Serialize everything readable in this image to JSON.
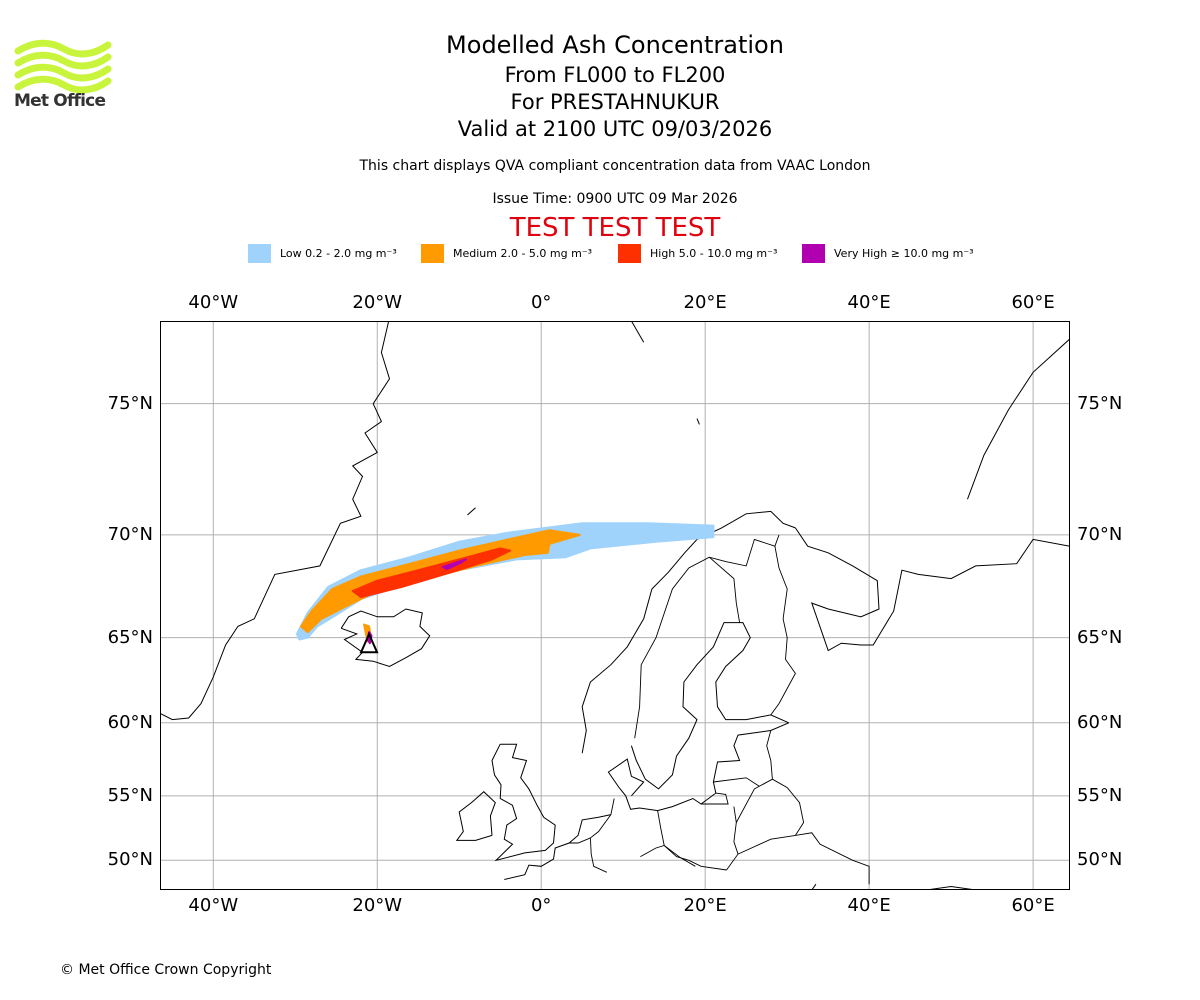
{
  "brand": {
    "name": "Met Office",
    "logo_color": "#c8f53c"
  },
  "titles": {
    "main": "Modelled Ash Concentration",
    "levels": "From FL000 to FL200",
    "volcano": "For PRESTAHNUKUR",
    "valid": "Valid at 2100 UTC 09/03/2026",
    "compliance": "This chart displays QVA compliant concentration data from VAAC London",
    "issue": "Issue Time: 0900 UTC 09 Mar 2026",
    "test_banner": "TEST TEST TEST",
    "test_color": "#e0000e"
  },
  "legend": [
    {
      "key": "low",
      "label": "Low 0.2 - 2.0 mg m⁻³",
      "color": "#9fd3fb"
    },
    {
      "key": "medium",
      "label": "Medium 2.0 - 5.0 mg m⁻³",
      "color": "#ff9a00"
    },
    {
      "key": "high",
      "label": "High 5.0 - 10.0 mg m⁻³",
      "color": "#ff3000"
    },
    {
      "key": "very-high",
      "label": "Very High ≥ 10.0 mg m⁻³",
      "color": "#b000b0"
    }
  ],
  "map": {
    "lon_range": [
      -46.5,
      64.5
    ],
    "lat_range": [
      47.5,
      77.5
    ],
    "lon_ticks": [
      {
        "value": -40,
        "label": "40°W"
      },
      {
        "value": -20,
        "label": "20°W"
      },
      {
        "value": 0,
        "label": "0°"
      },
      {
        "value": 20,
        "label": "20°E"
      },
      {
        "value": 40,
        "label": "40°E"
      },
      {
        "value": 60,
        "label": "60°E"
      }
    ],
    "lat_ticks": [
      {
        "value": 75,
        "label": "75°N"
      },
      {
        "value": 70,
        "label": "70°N"
      },
      {
        "value": 65,
        "label": "65°N"
      },
      {
        "value": 60,
        "label": "60°N"
      },
      {
        "value": 55,
        "label": "55°N"
      },
      {
        "value": 50,
        "label": "50°N"
      }
    ],
    "gridlines": true,
    "volcano": {
      "lon": -21.0,
      "lat": 64.7
    },
    "plume": {
      "low": [
        [
          -29.8,
          65.2
        ],
        [
          -28.5,
          66.3
        ],
        [
          -26,
          67.6
        ],
        [
          -22,
          68.4
        ],
        [
          -16,
          69.0
        ],
        [
          -10,
          69.7
        ],
        [
          -4,
          70.1
        ],
        [
          5,
          70.5
        ],
        [
          13,
          70.5
        ],
        [
          21,
          70.4
        ],
        [
          21,
          69.9
        ],
        [
          14,
          69.7
        ],
        [
          6,
          69.4
        ],
        [
          3,
          69.0
        ],
        [
          -3,
          68.9
        ],
        [
          -10,
          68.4
        ],
        [
          -16,
          67.8
        ],
        [
          -22,
          67.0
        ],
        [
          -25,
          66.2
        ],
        [
          -27.3,
          65.6
        ],
        [
          -28.5,
          65.0
        ],
        [
          -29.5,
          64.9
        ]
      ],
      "medium": [
        [
          -29.3,
          65.6
        ],
        [
          -28,
          66.4
        ],
        [
          -25.5,
          67.5
        ],
        [
          -22,
          68.1
        ],
        [
          -16,
          68.7
        ],
        [
          -10,
          69.3
        ],
        [
          -4,
          69.8
        ],
        [
          1,
          70.2
        ],
        [
          4.7,
          70.0
        ],
        [
          1,
          69.6
        ],
        [
          0.8,
          69.2
        ],
        [
          -2,
          69.1
        ],
        [
          -8,
          68.6
        ],
        [
          -14,
          68.0
        ],
        [
          -20,
          67.4
        ],
        [
          -24,
          66.6
        ],
        [
          -26.8,
          66.0
        ],
        [
          -28.5,
          65.3
        ]
      ],
      "high": [
        [
          -23,
          67.4
        ],
        [
          -20,
          67.9
        ],
        [
          -15,
          68.4
        ],
        [
          -9,
          69.0
        ],
        [
          -5,
          69.4
        ],
        [
          -3.8,
          69.3
        ],
        [
          -6,
          68.9
        ],
        [
          -11,
          68.3
        ],
        [
          -17,
          67.6
        ],
        [
          -22,
          67.1
        ]
      ],
      "very_high": [
        [
          -12,
          68.55
        ],
        [
          -10.8,
          68.7
        ],
        [
          -9.2,
          68.9
        ],
        [
          -9.8,
          68.75
        ],
        [
          -11.5,
          68.45
        ]
      ]
    },
    "source_plume": {
      "medium": [
        [
          -21.6,
          65.7
        ],
        [
          -21.0,
          65.6
        ],
        [
          -20.7,
          64.8
        ],
        [
          -21.2,
          64.8
        ]
      ],
      "very_high": [
        [
          -21.0,
          65.3
        ],
        [
          -20.7,
          65.1
        ],
        [
          -20.9,
          64.7
        ],
        [
          -21.2,
          64.9
        ]
      ]
    },
    "coast_color": "#000000",
    "grid_color": "#b0b0b0"
  },
  "footer": {
    "copyright": "© Met Office Crown Copyright"
  }
}
